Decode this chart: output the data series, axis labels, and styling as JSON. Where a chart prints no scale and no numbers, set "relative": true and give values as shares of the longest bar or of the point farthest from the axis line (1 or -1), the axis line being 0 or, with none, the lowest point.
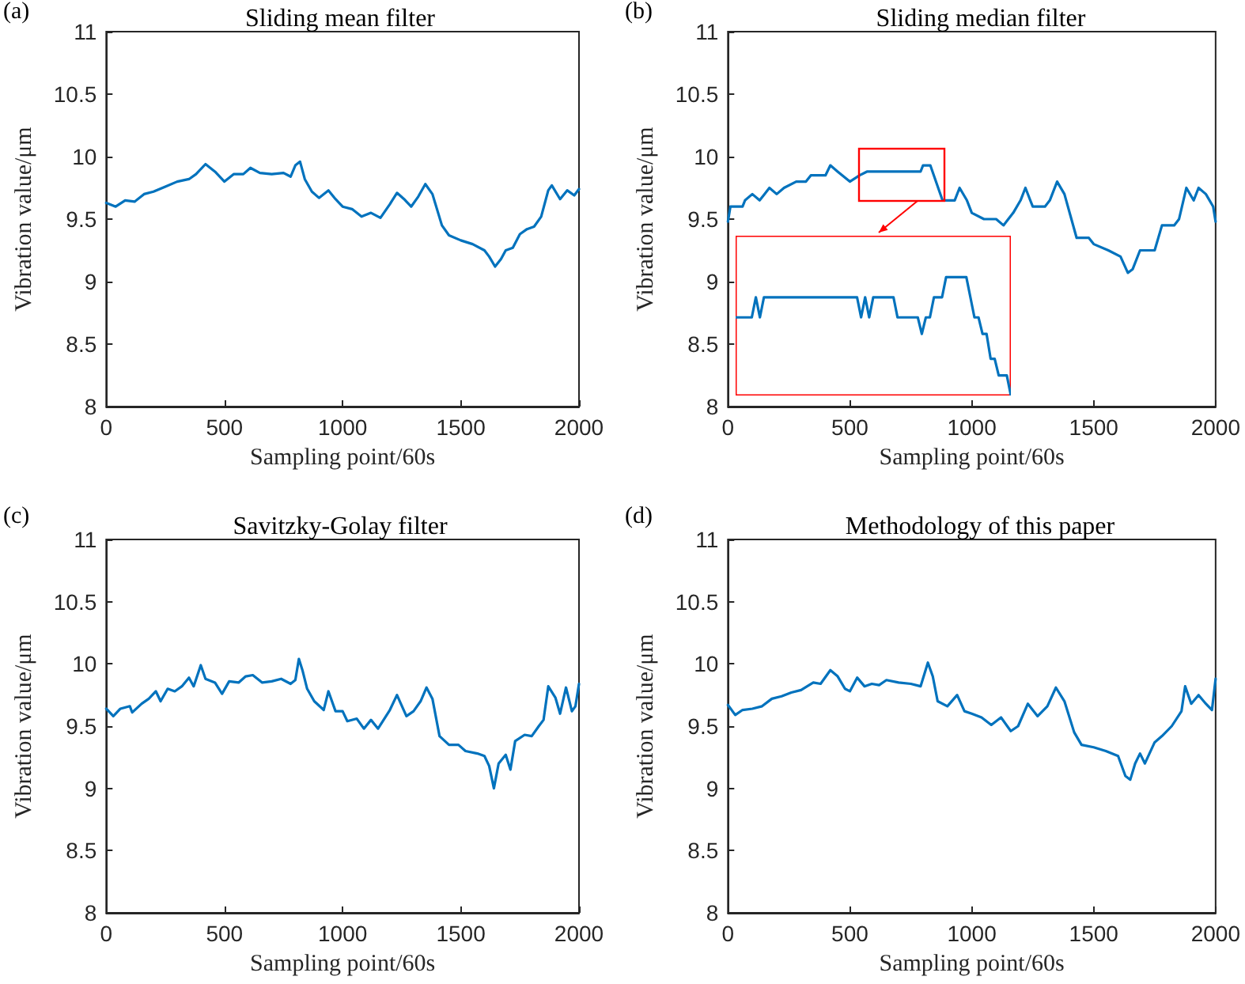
{
  "chart_data": [
    {
      "type": "line",
      "title": "Sliding mean filter",
      "annotations": [
        "(a)"
      ],
      "xlabel": "Sampling point/60s",
      "ylabel": "Vibration value/μm",
      "xlim": [
        0,
        2000
      ],
      "xticks": [
        0,
        500,
        1000,
        1500,
        2000
      ],
      "ylim": [
        8,
        11
      ],
      "yticks": [
        8,
        8.5,
        9,
        9.5,
        10,
        10.5,
        11
      ],
      "grid": false,
      "color": "#0072bd",
      "x": [
        0,
        40,
        80,
        120,
        160,
        200,
        250,
        300,
        350,
        380,
        420,
        460,
        500,
        540,
        580,
        610,
        650,
        700,
        750,
        780,
        800,
        820,
        840,
        870,
        900,
        940,
        970,
        1000,
        1040,
        1080,
        1120,
        1160,
        1200,
        1230,
        1260,
        1290,
        1320,
        1350,
        1380,
        1420,
        1450,
        1500,
        1550,
        1600,
        1620,
        1645,
        1670,
        1690,
        1720,
        1750,
        1780,
        1810,
        1840,
        1870,
        1885,
        1920,
        1950,
        1980,
        2000
      ],
      "values": [
        9.63,
        9.6,
        9.65,
        9.64,
        9.7,
        9.72,
        9.76,
        9.8,
        9.82,
        9.86,
        9.94,
        9.88,
        9.8,
        9.86,
        9.86,
        9.91,
        9.87,
        9.86,
        9.87,
        9.84,
        9.93,
        9.96,
        9.82,
        9.72,
        9.67,
        9.73,
        9.66,
        9.6,
        9.58,
        9.52,
        9.55,
        9.51,
        9.62,
        9.71,
        9.66,
        9.6,
        9.68,
        9.78,
        9.7,
        9.45,
        9.37,
        9.33,
        9.3,
        9.25,
        9.2,
        9.12,
        9.18,
        9.25,
        9.27,
        9.38,
        9.42,
        9.44,
        9.52,
        9.73,
        9.77,
        9.66,
        9.73,
        9.69,
        9.74
      ]
    },
    {
      "type": "line",
      "title": "Sliding median filter",
      "annotations": [
        "(b)"
      ],
      "xlabel": "Sampling point/60s",
      "ylabel": "Vibration value/μm",
      "xlim": [
        0,
        2000
      ],
      "xticks": [
        0,
        500,
        1000,
        1500,
        2000
      ],
      "ylim": [
        8,
        11
      ],
      "yticks": [
        8,
        8.5,
        9,
        9.5,
        10,
        10.5,
        11
      ],
      "grid": false,
      "color": "#0072bd",
      "x": [
        0,
        10,
        60,
        70,
        100,
        130,
        150,
        170,
        200,
        230,
        280,
        320,
        340,
        400,
        420,
        450,
        500,
        540,
        570,
        790,
        800,
        830,
        880,
        930,
        950,
        980,
        1000,
        1050,
        1100,
        1130,
        1170,
        1200,
        1220,
        1250,
        1300,
        1320,
        1350,
        1380,
        1430,
        1480,
        1500,
        1560,
        1610,
        1640,
        1660,
        1690,
        1750,
        1780,
        1830,
        1850,
        1880,
        1910,
        1930,
        1960,
        1990,
        2000
      ],
      "values": [
        9.48,
        9.6,
        9.6,
        9.65,
        9.7,
        9.65,
        9.7,
        9.75,
        9.7,
        9.75,
        9.8,
        9.8,
        9.85,
        9.85,
        9.93,
        9.88,
        9.8,
        9.85,
        9.88,
        9.88,
        9.93,
        9.93,
        9.65,
        9.65,
        9.75,
        9.65,
        9.55,
        9.5,
        9.5,
        9.45,
        9.55,
        9.65,
        9.75,
        9.6,
        9.6,
        9.65,
        9.8,
        9.7,
        9.35,
        9.35,
        9.3,
        9.25,
        9.2,
        9.07,
        9.1,
        9.25,
        9.25,
        9.45,
        9.45,
        9.5,
        9.75,
        9.65,
        9.75,
        9.7,
        9.6,
        9.48
      ]
    },
    {
      "type": "line",
      "title": "Savitzky-Golay filter",
      "annotations": [
        "(c)"
      ],
      "xlabel": "Sampling point/60s",
      "ylabel": "Vibration value/μm",
      "xlim": [
        0,
        2000
      ],
      "xticks": [
        0,
        500,
        1000,
        1500,
        2000
      ],
      "ylim": [
        8,
        11
      ],
      "yticks": [
        8,
        8.5,
        9,
        9.5,
        10,
        10.5,
        11
      ],
      "grid": false,
      "color": "#0072bd",
      "x": [
        0,
        30,
        60,
        100,
        110,
        150,
        180,
        210,
        230,
        260,
        290,
        320,
        350,
        370,
        400,
        420,
        460,
        490,
        520,
        560,
        590,
        620,
        660,
        700,
        740,
        780,
        800,
        815,
        830,
        850,
        880,
        920,
        940,
        970,
        1000,
        1020,
        1060,
        1090,
        1120,
        1150,
        1200,
        1230,
        1270,
        1300,
        1330,
        1355,
        1380,
        1410,
        1450,
        1490,
        1520,
        1570,
        1600,
        1620,
        1640,
        1660,
        1690,
        1710,
        1730,
        1770,
        1800,
        1830,
        1850,
        1870,
        1900,
        1920,
        1945,
        1970,
        1985,
        2000
      ],
      "values": [
        9.64,
        9.58,
        9.64,
        9.66,
        9.61,
        9.68,
        9.72,
        9.78,
        9.7,
        9.8,
        9.78,
        9.82,
        9.89,
        9.82,
        9.99,
        9.88,
        9.85,
        9.76,
        9.86,
        9.85,
        9.9,
        9.91,
        9.85,
        9.86,
        9.88,
        9.84,
        9.87,
        10.04,
        9.95,
        9.8,
        9.7,
        9.63,
        9.78,
        9.62,
        9.62,
        9.54,
        9.56,
        9.48,
        9.55,
        9.48,
        9.63,
        9.75,
        9.58,
        9.62,
        9.7,
        9.81,
        9.72,
        9.42,
        9.35,
        9.35,
        9.3,
        9.28,
        9.26,
        9.18,
        9.0,
        9.2,
        9.27,
        9.15,
        9.38,
        9.43,
        9.42,
        9.5,
        9.55,
        9.82,
        9.73,
        9.6,
        9.81,
        9.62,
        9.66,
        9.84
      ]
    },
    {
      "type": "line",
      "title": "Methodology of this paper",
      "annotations": [
        "(d)"
      ],
      "xlabel": "Sampling point/60s",
      "ylabel": "Vibration value/μm",
      "xlim": [
        0,
        2000
      ],
      "xticks": [
        0,
        500,
        1000,
        1500,
        2000
      ],
      "ylim": [
        8,
        11
      ],
      "yticks": [
        8,
        8.5,
        9,
        9.5,
        10,
        10.5,
        11
      ],
      "grid": false,
      "color": "#0072bd",
      "x": [
        0,
        30,
        60,
        100,
        140,
        180,
        220,
        260,
        300,
        350,
        380,
        420,
        450,
        480,
        500,
        530,
        560,
        590,
        620,
        650,
        700,
        750,
        790,
        820,
        840,
        860,
        900,
        940,
        970,
        1000,
        1040,
        1080,
        1120,
        1160,
        1190,
        1230,
        1270,
        1310,
        1345,
        1380,
        1420,
        1450,
        1500,
        1550,
        1600,
        1630,
        1650,
        1670,
        1690,
        1710,
        1750,
        1780,
        1820,
        1860,
        1875,
        1900,
        1930,
        1960,
        1985,
        2000
      ],
      "values": [
        9.67,
        9.59,
        9.63,
        9.64,
        9.66,
        9.72,
        9.74,
        9.77,
        9.79,
        9.85,
        9.84,
        9.95,
        9.9,
        9.8,
        9.78,
        9.89,
        9.82,
        9.84,
        9.83,
        9.87,
        9.85,
        9.84,
        9.82,
        10.01,
        9.9,
        9.7,
        9.66,
        9.75,
        9.62,
        9.6,
        9.57,
        9.51,
        9.57,
        9.46,
        9.5,
        9.68,
        9.58,
        9.66,
        9.81,
        9.7,
        9.45,
        9.35,
        9.33,
        9.3,
        9.26,
        9.1,
        9.07,
        9.2,
        9.28,
        9.2,
        9.37,
        9.42,
        9.5,
        9.62,
        9.82,
        9.68,
        9.75,
        9.68,
        9.63,
        9.88
      ]
    },
    {
      "type": "line",
      "relative": true,
      "color": "#0072bd",
      "categories": [
        null,
        null,
        null,
        null,
        null,
        null,
        null,
        null,
        null,
        null,
        null,
        null,
        null,
        null,
        null,
        null,
        null,
        null,
        null,
        null,
        null,
        null,
        null,
        null,
        null,
        null,
        null,
        null,
        null,
        null,
        null,
        null,
        null,
        null,
        null,
        null,
        null,
        null,
        null,
        null,
        null,
        null,
        null,
        null,
        null,
        null,
        null,
        null,
        null,
        null,
        null,
        null,
        null,
        null,
        null,
        null,
        null,
        null,
        null,
        null,
        null,
        null,
        null,
        null,
        null,
        null,
        null,
        null,
        null
      ],
      "values": [
        0.66,
        0.66,
        0.66,
        0.66,
        0.66,
        0.83,
        0.66,
        0.83,
        0.83,
        0.83,
        0.83,
        0.83,
        0.83,
        0.83,
        0.83,
        0.83,
        0.83,
        0.83,
        0.83,
        0.83,
        0.83,
        0.83,
        0.83,
        0.83,
        0.83,
        0.83,
        0.83,
        0.83,
        0.83,
        0.83,
        0.83,
        0.66,
        0.83,
        0.66,
        0.83,
        0.83,
        0.83,
        0.83,
        0.83,
        0.83,
        0.66,
        0.66,
        0.66,
        0.66,
        0.66,
        0.66,
        0.52,
        0.66,
        0.66,
        0.83,
        0.83,
        0.83,
        1,
        1,
        1,
        1,
        1,
        1,
        0.83,
        0.66,
        0.66,
        0.52,
        0.52,
        0.31,
        0.31,
        0.17,
        0.17,
        0.17,
        0
      ]
    }
  ]
}
